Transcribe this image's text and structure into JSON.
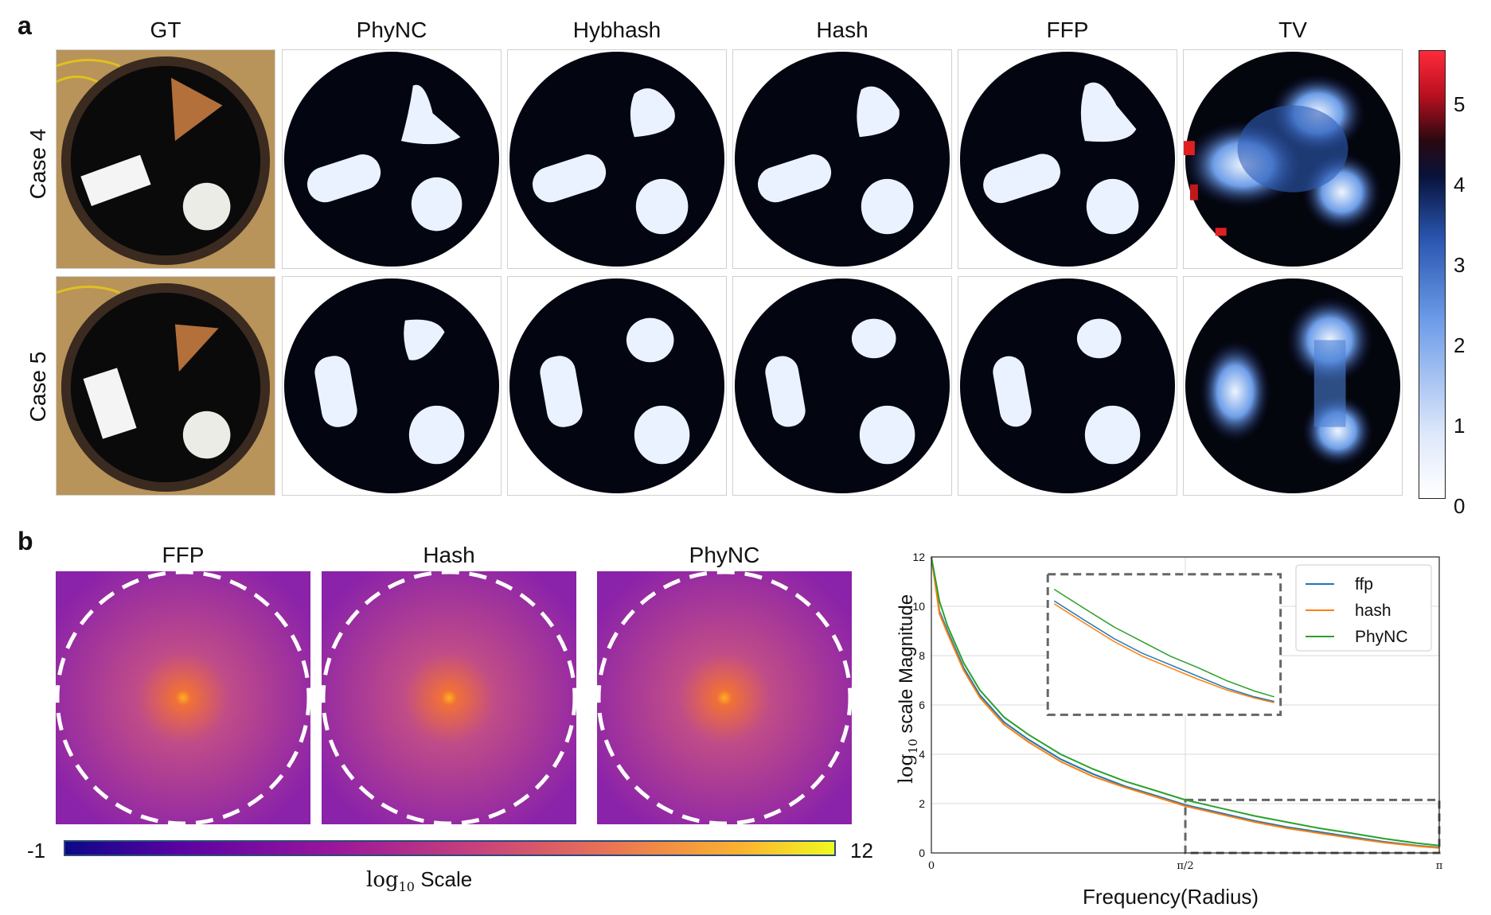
{
  "panel_a": {
    "letter": "a",
    "columns": [
      "GT",
      "PhyNC",
      "Hybhash",
      "Hash",
      "FFP",
      "TV"
    ],
    "rows": [
      "Case 4",
      "Case 5"
    ],
    "colorbar": {
      "ticks": [
        "5",
        "4",
        "3",
        "2",
        "1",
        "0"
      ],
      "min": 0,
      "max": 5.5
    }
  },
  "panel_b": {
    "letter": "b",
    "spectra_titles": [
      "FFP",
      "Hash",
      "PhyNC"
    ],
    "colorbar": {
      "min_label": "-1",
      "max_label": "12",
      "label_prefix": "log",
      "label_sub": "10",
      "label_suffix": " Scale"
    }
  },
  "chart_data": {
    "type": "line",
    "xlabel": "Frequency(Radius)",
    "ylabel_prefix": "log",
    "ylabel_sub": "10",
    "ylabel_suffix": " scale Magnitude",
    "x_ticks": [
      "0",
      "π/2",
      "π"
    ],
    "y_ticks": [
      "0",
      "2",
      "4",
      "6",
      "8",
      "10",
      "12"
    ],
    "xlim": [
      0,
      3.1416
    ],
    "ylim": [
      0,
      12
    ],
    "grid": true,
    "legend": "top-right",
    "series": [
      {
        "name": "ffp",
        "color": "#1f77b4",
        "x": [
          0.0,
          0.05,
          0.1,
          0.2,
          0.3,
          0.45,
          0.6,
          0.8,
          1.0,
          1.2,
          1.4,
          1.571,
          1.8,
          2.0,
          2.2,
          2.4,
          2.6,
          2.8,
          3.0,
          3.1416
        ],
        "values": [
          12.0,
          9.8,
          9.0,
          7.5,
          6.4,
          5.3,
          4.6,
          3.8,
          3.2,
          2.7,
          2.3,
          1.95,
          1.6,
          1.3,
          1.05,
          0.85,
          0.65,
          0.45,
          0.3,
          0.22
        ]
      },
      {
        "name": "hash",
        "color": "#ff7f0e",
        "x": [
          0.0,
          0.05,
          0.1,
          0.2,
          0.3,
          0.45,
          0.6,
          0.8,
          1.0,
          1.2,
          1.4,
          1.571,
          1.8,
          2.0,
          2.2,
          2.4,
          2.6,
          2.8,
          3.0,
          3.1416
        ],
        "values": [
          12.0,
          9.7,
          8.9,
          7.4,
          6.3,
          5.2,
          4.5,
          3.7,
          3.1,
          2.65,
          2.25,
          1.9,
          1.55,
          1.25,
          1.0,
          0.8,
          0.6,
          0.42,
          0.28,
          0.2
        ]
      },
      {
        "name": "PhyNC",
        "color": "#2ca02c",
        "x": [
          0.0,
          0.05,
          0.1,
          0.2,
          0.3,
          0.45,
          0.6,
          0.8,
          1.0,
          1.2,
          1.4,
          1.571,
          1.8,
          2.0,
          2.2,
          2.4,
          2.6,
          2.8,
          3.0,
          3.1416
        ],
        "values": [
          12.0,
          10.2,
          9.2,
          7.7,
          6.6,
          5.5,
          4.8,
          4.0,
          3.4,
          2.9,
          2.5,
          2.15,
          1.8,
          1.5,
          1.25,
          1.0,
          0.8,
          0.58,
          0.4,
          0.3
        ]
      }
    ]
  }
}
